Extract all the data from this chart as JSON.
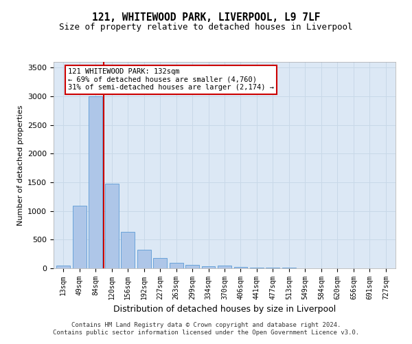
{
  "title_line1": "121, WHITEWOOD PARK, LIVERPOOL, L9 7LF",
  "title_line2": "Size of property relative to detached houses in Liverpool",
  "xlabel": "Distribution of detached houses by size in Liverpool",
  "ylabel": "Number of detached properties",
  "categories": [
    "13sqm",
    "49sqm",
    "84sqm",
    "120sqm",
    "156sqm",
    "192sqm",
    "227sqm",
    "263sqm",
    "299sqm",
    "334sqm",
    "370sqm",
    "406sqm",
    "441sqm",
    "477sqm",
    "513sqm",
    "549sqm",
    "584sqm",
    "620sqm",
    "656sqm",
    "691sqm",
    "727sqm"
  ],
  "values": [
    50,
    1090,
    3000,
    1480,
    640,
    330,
    175,
    95,
    55,
    35,
    50,
    25,
    18,
    10,
    7,
    4,
    3,
    2,
    1,
    1,
    0
  ],
  "bar_color": "#aec6e8",
  "bar_edge_color": "#5b9bd5",
  "annotation_box_text_line1": "121 WHITEWOOD PARK: 132sqm",
  "annotation_box_text_line2": "← 69% of detached houses are smaller (4,760)",
  "annotation_box_text_line3": "31% of semi-detached houses are larger (2,174) →",
  "annotation_box_edge_color": "#cc0000",
  "vline_color": "#cc0000",
  "ylim": [
    0,
    3600
  ],
  "yticks": [
    0,
    500,
    1000,
    1500,
    2000,
    2500,
    3000,
    3500
  ],
  "grid_color": "#c8d8e8",
  "background_color": "#dce8f5",
  "fig_background": "#ffffff",
  "footer_line1": "Contains HM Land Registry data © Crown copyright and database right 2024.",
  "footer_line2": "Contains public sector information licensed under the Open Government Licence v3.0."
}
